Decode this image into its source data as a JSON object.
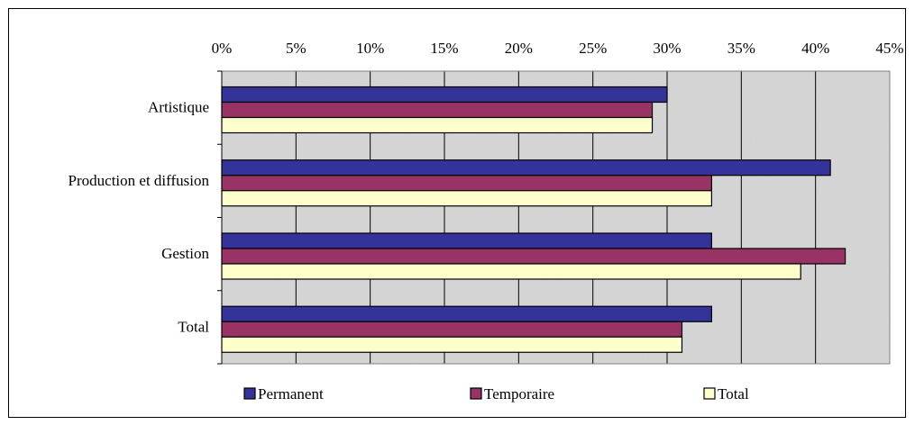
{
  "chart_data": {
    "type": "bar",
    "orientation": "horizontal",
    "categories": [
      "Artistique",
      "Production et diffusion",
      "Gestion",
      "Total"
    ],
    "series": [
      {
        "name": "Permanent",
        "values": [
          30,
          41,
          33,
          33
        ],
        "color": "#333399"
      },
      {
        "name": "Temporaire",
        "values": [
          29,
          33,
          42,
          31
        ],
        "color": "#993366"
      },
      {
        "name": "Total",
        "values": [
          29,
          33,
          39,
          31
        ],
        "color": "#ffffcc"
      }
    ],
    "x_ticks": [
      "0%",
      "5%",
      "10%",
      "15%",
      "20%",
      "25%",
      "30%",
      "35%",
      "40%",
      "45%"
    ],
    "xlim": [
      0,
      45
    ],
    "unit": "%",
    "grid": true,
    "legend_position": "bottom",
    "plot_background": "textured-gray"
  }
}
